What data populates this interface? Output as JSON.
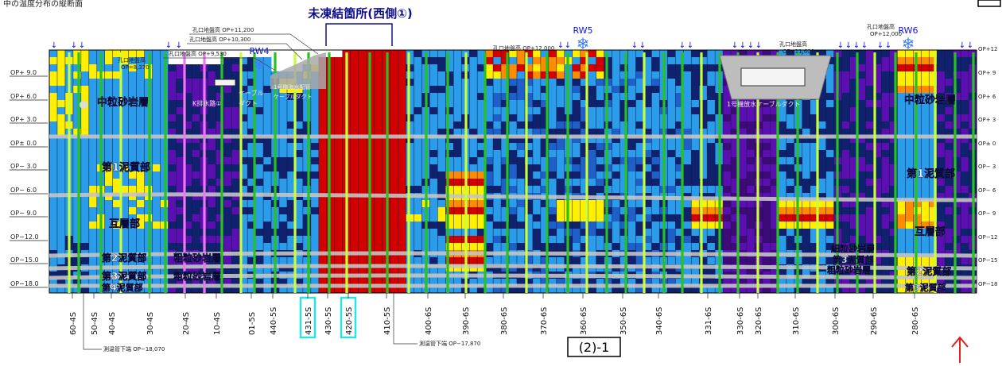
{
  "title": "未凍結箇所(西側①)",
  "figure_id": "(2)-1",
  "colors": {
    "red": "#d40000",
    "orange": "#ff8c00",
    "yellow": "#ffef00",
    "blue": "#2a9cea",
    "navy": "#10226e",
    "purple": "#5c0fb0",
    "purple_dark": "#3d0a77",
    "mid_blue": "#1f60c8",
    "pipe_green": "#27c21f",
    "pipe_pink": "#ee77ee",
    "pipe_lime": "#c7ff3a",
    "boundary": "#c4c4c4",
    "highlight": "#2be3e3",
    "accent_red": "#e02020",
    "label_blue": "#1010e0"
  },
  "elevation_labels": [
    "OP+ 9.0",
    "OP+ 6.0",
    "OP+ 3.0",
    "OP± 0.0",
    "OP− 3.0",
    "OP− 6.0",
    "OP− 9.0",
    "OP−12.0",
    "OP−15.0",
    "OP−18.0"
  ],
  "elevation_labels_right": [
    "OP+12",
    "OP+ 9",
    "OP+ 6",
    "OP+ 3",
    "OP± 0",
    "OP− 3",
    "OP− 6",
    "OP− 9",
    "OP−12",
    "OP−15",
    "OP−18"
  ],
  "well_labels": [
    "60-4S",
    "50-4S",
    "40-4S",
    "30-4S",
    "20-4S",
    "10-4S",
    "01-5S",
    "440-5S",
    "431-5S",
    "430-5S",
    "420-5S",
    "410-5S",
    "400-6S",
    "390-6S",
    "380-6S",
    "370-6S",
    "360-6S",
    "350-6S",
    "340-6S",
    "331-6S",
    "330-6S",
    "320-6S",
    "310-6S",
    "300-6S",
    "290-6S",
    "280-6S"
  ],
  "highlighted_wells": [
    "431-5S",
    "420-5S"
  ],
  "rw_labels": [
    "RW4",
    "RW5",
    "RW6"
  ],
  "ground_level_labels": [
    {
      "text": "孔口地盤高",
      "sub": "OP=8,370"
    },
    {
      "text": "孔口地盤高 OP+9,530"
    },
    {
      "text": "孔口地盤高 OP+10,300"
    },
    {
      "text": "孔口地盤高 OP+11,200"
    },
    {
      "text": "孔口地盤高 OP+12,000"
    },
    {
      "text": "孔口地盤高",
      "sub": "OP+11,600"
    },
    {
      "text": "孔口地盤高",
      "sub": "OP+12,000"
    }
  ],
  "bottom_notes": [
    "測温管下端 OP−18,070",
    "測温管下端 OP−17,870"
  ],
  "strata_labels": [
    "中粒砂岩層",
    "第1泥質部",
    "互層部",
    "第2泥質部",
    "第3泥質部",
    "第4泥質部",
    "粗粒砂岩層",
    "粗粒砂岩層",
    "中粒砂岩層",
    "第1泥質部",
    "互層部",
    "細粒砂岩層",
    "第3泥質部",
    "粗粒砂岩層",
    "第2泥質部",
    "第3泥質部"
  ],
  "structure_labels": [
    "K排水路①",
    "ケーブル",
    "ダクト",
    "1号機海水配管",
    "ケーブルダクト",
    "1号機放水ケーブルダクト"
  ],
  "top_left_caption": "中の温度分布の縦断面"
}
